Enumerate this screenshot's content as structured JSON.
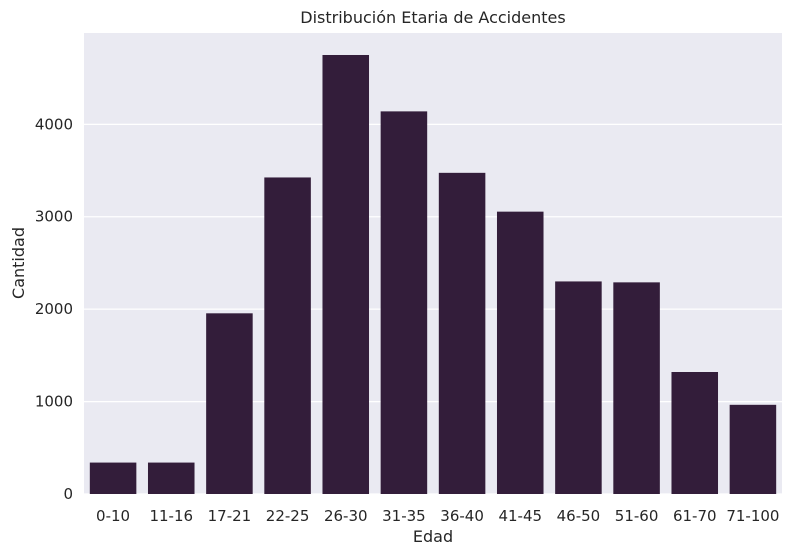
{
  "chart_data": {
    "type": "bar",
    "title": "Distribución Etaria de Accidentes",
    "xlabel": "Edad",
    "ylabel": "Cantidad",
    "categories": [
      "0-10",
      "11-16",
      "17-21",
      "22-25",
      "26-30",
      "31-35",
      "36-40",
      "41-45",
      "46-50",
      "51-60",
      "61-70",
      "71-100"
    ],
    "values": [
      340,
      340,
      1955,
      3425,
      4750,
      4140,
      3475,
      3055,
      2300,
      2290,
      1320,
      965
    ],
    "yticks": [
      0,
      1000,
      2000,
      3000,
      4000
    ],
    "ylim": [
      0,
      4988
    ],
    "grid": true,
    "bar_color": "#331d3a",
    "background_color": "#eaeaf2",
    "grid_color": "#ffffff"
  }
}
